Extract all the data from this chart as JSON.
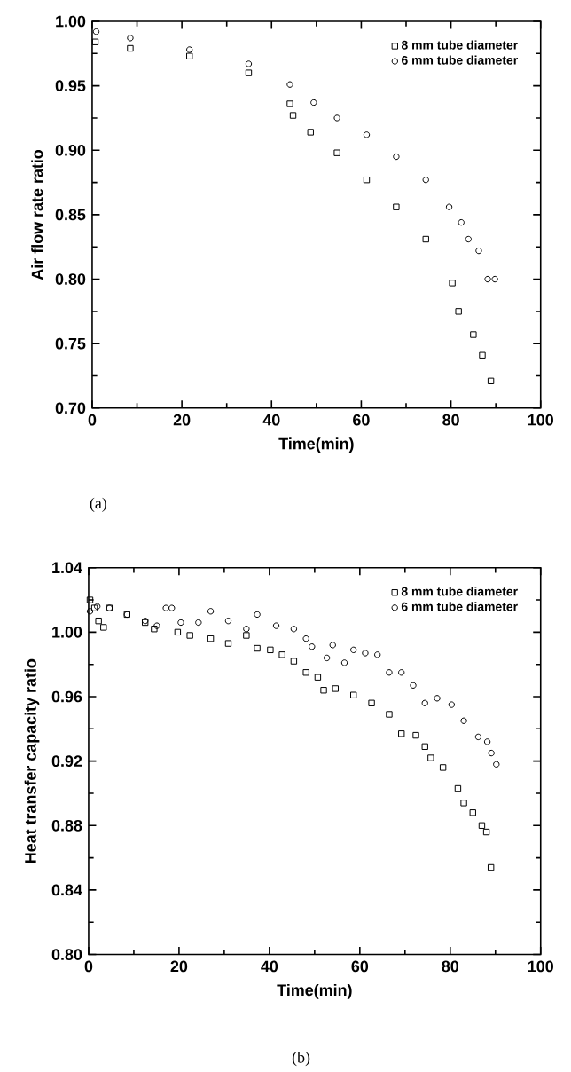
{
  "chart_data": [
    {
      "type": "scatter",
      "xlabel": "Time(min)",
      "ylabel": "Air flow rate ratio",
      "xlim": [
        0,
        100
      ],
      "ylim": [
        0.7,
        1.0
      ],
      "xticks": [
        0,
        20,
        40,
        60,
        80,
        100
      ],
      "yticks": [
        {
          "value": 0.7,
          "label": "0.70"
        },
        {
          "value": 0.75,
          "label": "0.75"
        },
        {
          "value": 0.8,
          "label": "0.80"
        },
        {
          "value": 0.85,
          "label": "0.85"
        },
        {
          "value": 0.9,
          "label": "0.90"
        },
        {
          "value": 0.95,
          "label": "0.95"
        },
        {
          "value": 1.0,
          "label": "1.00"
        }
      ],
      "legend": "top right",
      "annotations": [
        "(a)"
      ],
      "series": [
        {
          "name": "8 mm tube diameter",
          "color": "#000000",
          "marker": "square",
          "x": [
            0.7,
            8.5,
            21.7,
            34.9,
            44.1,
            44.8,
            48.7,
            54.6,
            61.2,
            67.8,
            74.4,
            80.3,
            81.7,
            85,
            87,
            88.9
          ],
          "values": [
            0.984,
            0.979,
            0.973,
            0.96,
            0.936,
            0.927,
            0.914,
            0.898,
            0.877,
            0.856,
            0.831,
            0.797,
            0.775,
            0.757,
            0.741,
            0.721
          ]
        },
        {
          "name": "6 mm tube diameter",
          "color": "#000000",
          "marker": "circle",
          "x": [
            0.9,
            8.5,
            21.7,
            34.9,
            44.1,
            49.4,
            54.6,
            61.2,
            67.8,
            74.4,
            79.6,
            82.3,
            83.9,
            86.2,
            88.2,
            89.8
          ],
          "values": [
            0.992,
            0.987,
            0.978,
            0.967,
            0.951,
            0.937,
            0.925,
            0.912,
            0.895,
            0.877,
            0.856,
            0.844,
            0.831,
            0.822,
            0.8,
            0.8
          ]
        }
      ]
    },
    {
      "type": "scatter",
      "xlabel": "Time(min)",
      "ylabel": "Heat transfer capacity ratio",
      "xlim": [
        0,
        100
      ],
      "ylim": [
        0.8,
        1.04
      ],
      "xticks": [
        0,
        20,
        40,
        60,
        80,
        100
      ],
      "yticks": [
        {
          "value": 0.8,
          "label": "0.80"
        },
        {
          "value": 0.84,
          "label": "0.84"
        },
        {
          "value": 0.88,
          "label": "0.88"
        },
        {
          "value": 0.92,
          "label": "0.92"
        },
        {
          "value": 0.96,
          "label": "0.96"
        },
        {
          "value": 1.0,
          "label": "1.00"
        },
        {
          "value": 1.04,
          "label": "1.04"
        }
      ],
      "legend": "top right",
      "annotations": [
        "(b)"
      ],
      "series": [
        {
          "name": "8 mm tube diameter",
          "color": "#000000",
          "marker": "square",
          "x": [
            0.3,
            1.3,
            2.2,
            3.3,
            4.6,
            8.5,
            12.5,
            14.5,
            19.7,
            22.4,
            27,
            30.9,
            34.9,
            37.3,
            40.2,
            42.8,
            45.4,
            48.1,
            50.7,
            52,
            54.6,
            58.6,
            62.6,
            66.5,
            69.2,
            72.4,
            74.4,
            75.7,
            78.4,
            81.7,
            83,
            85,
            87,
            88,
            89
          ],
          "values": [
            1.02,
            1.015,
            1.007,
            1.003,
            1.015,
            1.011,
            1.006,
            1.002,
            1.0,
            0.998,
            0.996,
            0.993,
            0.998,
            0.99,
            0.989,
            0.986,
            0.982,
            0.975,
            0.972,
            0.964,
            0.965,
            0.961,
            0.956,
            0.949,
            0.937,
            0.936,
            0.929,
            0.922,
            0.916,
            0.903,
            0.894,
            0.888,
            0.88,
            0.876,
            0.854
          ]
        },
        {
          "name": "6 mm tube diameter",
          "color": "#000000",
          "marker": "circle",
          "x": [
            0.3,
            1.9,
            4.6,
            8.5,
            12.5,
            15.1,
            17.1,
            18.4,
            20.4,
            24.3,
            27,
            30.9,
            34.9,
            37.3,
            41.5,
            45.4,
            48.1,
            49.4,
            52.7,
            54,
            56.6,
            58.6,
            61.2,
            63.9,
            66.5,
            69.2,
            71.8,
            74.4,
            77.1,
            80.3,
            83,
            86.2,
            88.2,
            89.1,
            90.2
          ],
          "values": [
            1.013,
            1.016,
            1.015,
            1.011,
            1.007,
            1.004,
            1.015,
            1.015,
            1.006,
            1.006,
            1.013,
            1.007,
            1.002,
            1.011,
            1.004,
            1.002,
            0.996,
            0.991,
            0.984,
            0.992,
            0.981,
            0.989,
            0.987,
            0.986,
            0.975,
            0.975,
            0.967,
            0.956,
            0.959,
            0.955,
            0.945,
            0.935,
            0.932,
            0.925,
            0.918
          ]
        }
      ]
    }
  ]
}
